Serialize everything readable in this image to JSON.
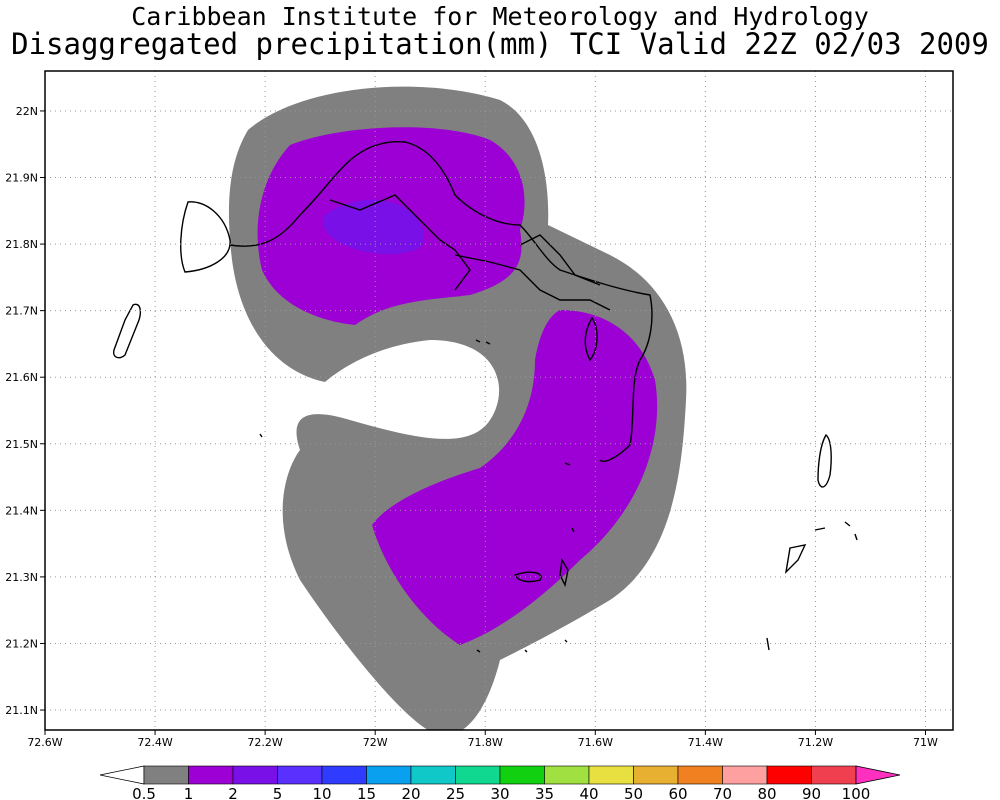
{
  "title": {
    "line1": "Caribbean Institute for Meteorology and Hydrology",
    "line2": "Disaggregated precipitation(mm) TCI Valid 22Z 02/03 2009"
  },
  "map": {
    "lon_ticks": [
      "72.6W",
      "72.4W",
      "72.2W",
      "72W",
      "71.8W",
      "71.6W",
      "71.4W",
      "71.2W",
      "71W"
    ],
    "lat_ticks": [
      "22N",
      "21.9N",
      "21.8N",
      "21.7N",
      "21.6N",
      "21.5N",
      "21.4N",
      "21.3N",
      "21.2N",
      "21.1N"
    ],
    "lon_range": [
      -72.6,
      -70.95
    ],
    "lat_range": [
      21.07,
      22.06
    ],
    "grid": "dotted",
    "shading": [
      {
        "class": "0.5–1",
        "color": "#808080"
      },
      {
        "class": "1–2",
        "color": "#9c00d4"
      },
      {
        "class": "2–5",
        "color": "#7a10e8"
      }
    ]
  },
  "legend": {
    "labels": [
      "0.5",
      "1",
      "2",
      "5",
      "10",
      "15",
      "20",
      "25",
      "30",
      "35",
      "40",
      "50",
      "60",
      "70",
      "80",
      "90",
      "100"
    ],
    "colors": [
      "#808080",
      "#9c00d4",
      "#7a10e8",
      "#5a30ff",
      "#2f3cff",
      "#0aa0f0",
      "#10c8c8",
      "#10d890",
      "#10d010",
      "#a0e040",
      "#e8e040",
      "#e8b030",
      "#f08020",
      "#ffa0a0",
      "#ff0000",
      "#f04050"
    ],
    "below_color": "#ffffff",
    "above_color": "#ff30c0"
  }
}
